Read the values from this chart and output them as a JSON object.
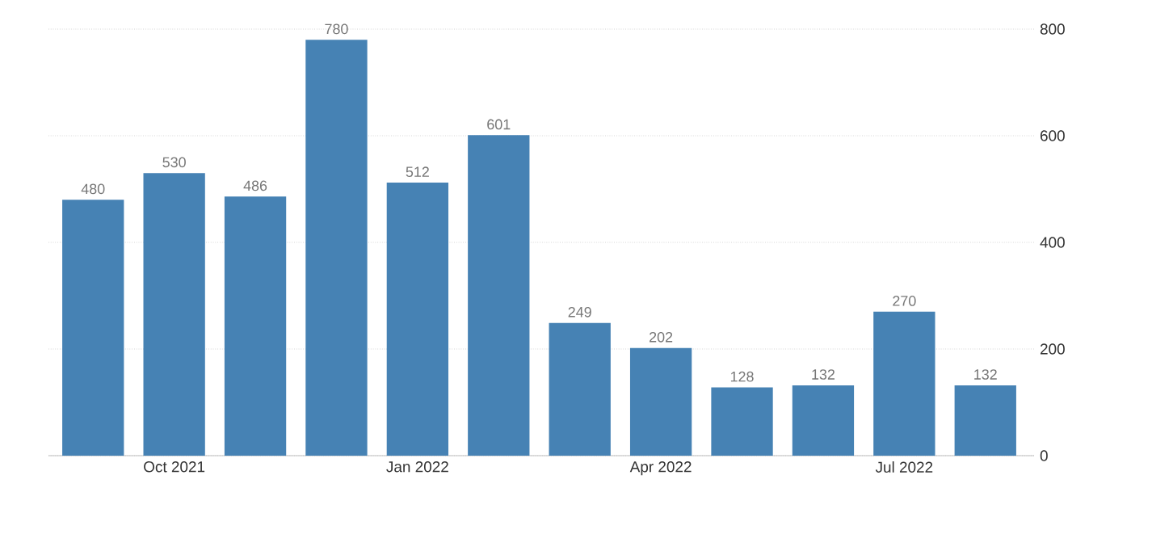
{
  "chart_data": {
    "type": "bar",
    "categories": [
      null,
      "Oct 2021",
      null,
      null,
      "Jan 2022",
      null,
      null,
      "Apr 2022",
      null,
      null,
      "Jul 2022",
      null
    ],
    "values": [
      480,
      530,
      486,
      780,
      512,
      601,
      249,
      202,
      128,
      132,
      270,
      132
    ],
    "color": "#4682b4",
    "ylim": [
      0,
      800
    ],
    "yticks": [
      0,
      200,
      400,
      600,
      800
    ],
    "grid": "y",
    "data_labels": true
  }
}
